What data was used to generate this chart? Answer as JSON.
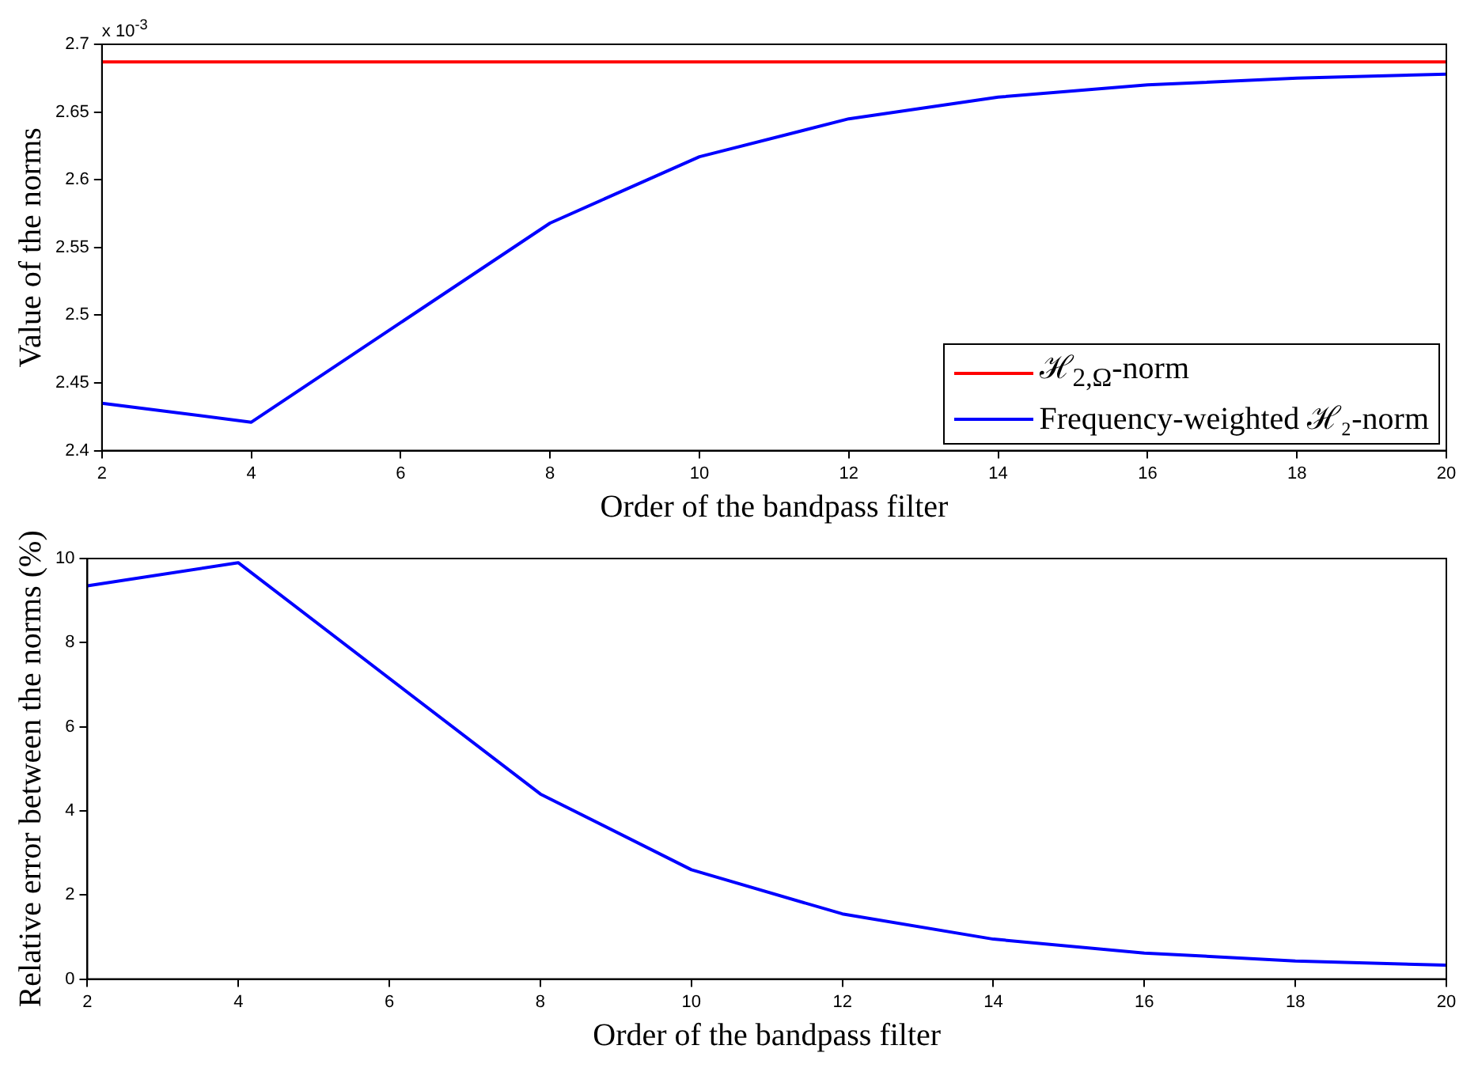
{
  "chart_data": [
    {
      "type": "line",
      "xlabel": "Order of the bandpass filter",
      "ylabel": "Value of the norms",
      "annotations": [
        "x 10$^{-3}$"
      ],
      "xlim": [
        2,
        20
      ],
      "xticks": [
        2,
        4,
        6,
        8,
        10,
        12,
        14,
        16,
        18,
        20
      ],
      "ylim": [
        2.4,
        2.7
      ],
      "yticks": [
        2.4,
        2.45,
        2.5,
        2.55,
        2.6,
        2.65,
        2.7
      ],
      "legend": "bottom right",
      "marker": "none",
      "series": [
        {
          "name": "ℋ$_{2,Ω}$-norm",
          "color": "#ff0000",
          "x": [
            2,
            20
          ],
          "values": [
            2.687,
            2.687
          ]
        },
        {
          "name": "Frequency-weighted ℋ₂-norm",
          "color": "#0000ff",
          "x": [
            2,
            4,
            8,
            10,
            12,
            14,
            16,
            18,
            20
          ],
          "values": [
            2.435,
            2.421,
            2.568,
            2.617,
            2.645,
            2.661,
            2.67,
            2.675,
            2.678
          ]
        }
      ]
    },
    {
      "type": "line",
      "xlabel": "Order of the bandpass filter",
      "ylabel": "Relative error between the norms (%)",
      "xlim": [
        2,
        20
      ],
      "xticks": [
        2,
        4,
        6,
        8,
        10,
        12,
        14,
        16,
        18,
        20
      ],
      "ylim": [
        0,
        10
      ],
      "yticks": [
        0,
        2,
        4,
        6,
        8,
        10
      ],
      "marker": "none",
      "series": [
        {
          "color": "#0000ff",
          "x": [
            2,
            4,
            8,
            10,
            12,
            14,
            16,
            18,
            20
          ],
          "values": [
            9.35,
            9.9,
            4.4,
            2.6,
            1.55,
            0.95,
            0.62,
            0.43,
            0.33
          ]
        }
      ]
    }
  ]
}
